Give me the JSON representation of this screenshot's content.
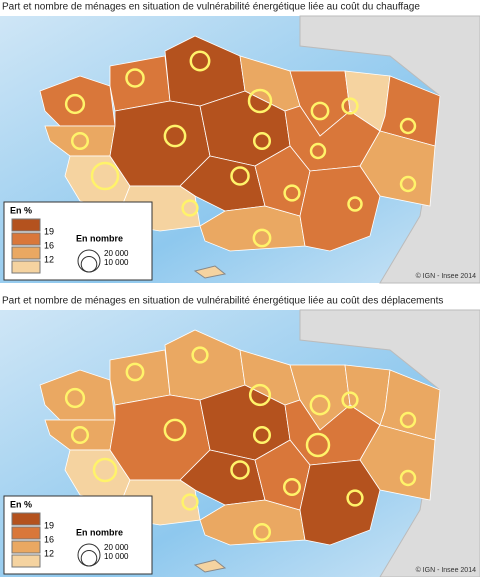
{
  "maps": [
    {
      "title": "Part et nombre de ménages en situation de vulnérabilité énergétique liée au coût du chauffage",
      "zone_colors": [
        "#d9773a",
        "#eaa862",
        "#f5d3a0",
        "#d9773a",
        "#b4521e",
        "#b4521e",
        "#b4521e",
        "#b4521e",
        "#f5d3a0",
        "#eaa862",
        "#eaa862",
        "#d9773a",
        "#d9773a",
        "#f5d3a0",
        "#d9773a",
        "#eaa862",
        "#d9773a",
        "#d9773a"
      ],
      "circles": [
        13000,
        10000,
        28000,
        12000,
        14000,
        17000,
        20000,
        12000,
        9000,
        11000,
        10000,
        11000,
        8000,
        9000,
        8000,
        8000,
        9000,
        7000
      ]
    },
    {
      "title": "Part et nombre de ménages en situation de vulnérabilité énergétique liée au coût des déplacements",
      "zone_colors": [
        "#eaa862",
        "#eaa862",
        "#f5d3a0",
        "#eaa862",
        "#eaa862",
        "#d9773a",
        "#b4521e",
        "#b4521e",
        "#f5d3a0",
        "#eaa862",
        "#eaa862",
        "#eaa862",
        "#d9773a",
        "#eaa862",
        "#eaa862",
        "#eaa862",
        "#d9773a",
        "#b4521e"
      ],
      "circles": [
        13000,
        10000,
        20000,
        11000,
        9000,
        17000,
        16000,
        12000,
        9000,
        10000,
        10000,
        14000,
        20000,
        9000,
        8000,
        8000,
        10000,
        9000
      ]
    }
  ],
  "legend": {
    "title": "En %",
    "colors": [
      "#b4521e",
      "#d9773a",
      "#eaa862",
      "#f5d3a0"
    ],
    "breaks": [
      19,
      16,
      12
    ],
    "size_title": "En nombre",
    "sizes": [
      {
        "value": 20000,
        "label": "20 000"
      },
      {
        "value": 10000,
        "label": "10 000"
      }
    ]
  },
  "credit": "© IGN - Insee 2014"
}
